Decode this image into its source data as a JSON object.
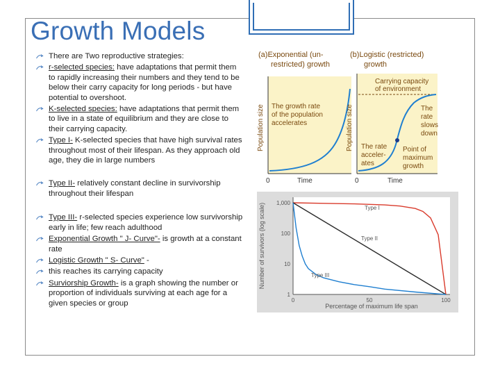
{
  "title": "Growth Models",
  "bullets": [
    {
      "u": "",
      "t": "There are Two reproductive strategies:"
    },
    {
      "u": "r-selected species:",
      "t": "  have adaptations that permit them to rapidly increasing their numbers and they tend to be below their carry capacity for long periods - but have potential to overshoot."
    },
    {
      "u": "K-selected species:",
      "t": " have adaptations that permit them to live in a state of equilibrium and they are close to their carrying capacity."
    },
    {
      "u": "Type I-",
      "t": " K-selected species that have high survival rates throughout most of their lifespan.  As they approach old age, they die in large numbers"
    },
    {
      "u": "Type II-",
      "t": " relatively constant decline in survivorship throughout their lifespan"
    },
    {
      "u": "Type III-",
      "t": " r-selected species experience low survivorship early in life; few reach adulthood"
    },
    {
      "u": "Exponential Growth \" J- Curve\"-",
      "t": " is growth at a constant rate"
    },
    {
      "u": "Logistic Growth \" S- Curve\"",
      "t": " -"
    },
    {
      "u": "",
      "t": "this reaches its carrying capacity"
    },
    {
      "u": "Surviorship Growth-",
      "t": " is a graph showing the number or proportion of individuals surviving at each age for a given species or group"
    }
  ],
  "growth_figure": {
    "panel_a": {
      "label": "(a)",
      "title_line1": "Exponential (un-",
      "title_line2": "restricted) growth",
      "note_line1": "The growth rate",
      "note_line2": "of the population",
      "note_line3": "accelerates",
      "y_label": "Population size",
      "x_zero": "0",
      "x_label": "Time"
    },
    "panel_b": {
      "label": "(b)",
      "title_line1": "Logistic (restricted)",
      "title_line2": "growth",
      "carrying_line1": "Carrying capacity",
      "carrying_line2": "of environment",
      "slows_line1": "The",
      "slows_line2": "rate",
      "slows_line3": "slows",
      "slows_line4": "down",
      "accel_line1": "The rate",
      "accel_line2": "acceler-",
      "accel_line3": "ates",
      "point_line1": "Point of",
      "point_line2": "maximum",
      "point_line3": "growth",
      "y_label": "Population size",
      "x_zero": "0",
      "x_label": "Time"
    },
    "colors": {
      "curve": "#1f7fd0",
      "background": "#fbf3c8",
      "text": "#7a4a10",
      "point": "#1a3a8a"
    }
  },
  "chart_data": {
    "type": "line",
    "title": "",
    "xlabel": "Percentage of maximum life span",
    "ylabel": "Number of survivors (log scale)",
    "x_ticks": [
      "0",
      "50",
      "100"
    ],
    "y_ticks": [
      "1,000",
      "100",
      "10",
      "1"
    ],
    "xlim": [
      0,
      100
    ],
    "ylim": [
      1,
      1000
    ],
    "y_scale": "log",
    "grid": false,
    "series": [
      {
        "name": "Type I",
        "color": "#d93a2b",
        "x": [
          0,
          20,
          40,
          60,
          70,
          80,
          85,
          90,
          95,
          100
        ],
        "y": [
          1000,
          960,
          920,
          850,
          780,
          650,
          520,
          320,
          90,
          1
        ]
      },
      {
        "name": "Type II",
        "color": "#2b2b2b",
        "x": [
          0,
          25,
          50,
          75,
          100
        ],
        "y": [
          1000,
          178,
          31.6,
          5.6,
          1
        ]
      },
      {
        "name": "Type III",
        "color": "#1f7fd0",
        "x": [
          0,
          2,
          4,
          6,
          8,
          10,
          15,
          20,
          30,
          40,
          50,
          60,
          80,
          100
        ],
        "y": [
          1000,
          150,
          40,
          18,
          10,
          7,
          4.5,
          3.5,
          2.6,
          2.1,
          1.8,
          1.5,
          1.2,
          1
        ]
      }
    ]
  }
}
